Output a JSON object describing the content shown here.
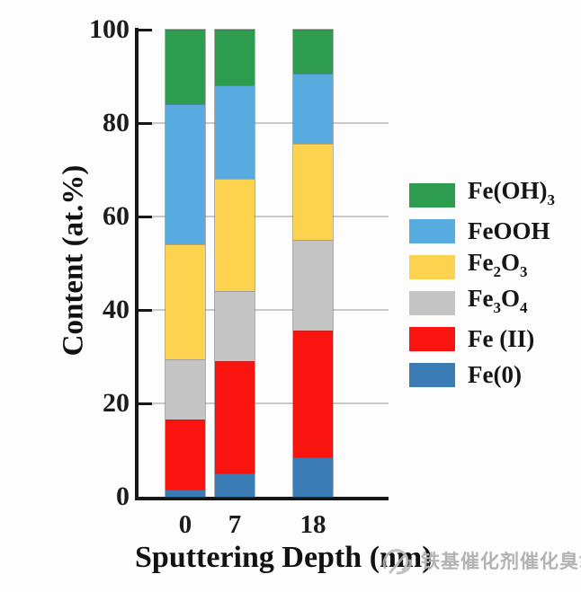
{
  "page": {
    "background": "#fdfdfd"
  },
  "chart_data": {
    "type": "bar",
    "stacked": true,
    "title": "",
    "xlabel": "Sputtering Depth (nm)",
    "ylabel": "Content (at.%)",
    "categories": [
      "0",
      "7",
      "18"
    ],
    "ylim": [
      0,
      100
    ],
    "yticks": [
      0,
      20,
      40,
      60,
      80,
      100
    ],
    "gridlines_at": [
      20,
      40,
      60,
      80
    ],
    "grid": "horizontal",
    "legend_position": "right",
    "series": [
      {
        "name": "Fe(0)",
        "color": "#3b7cb4",
        "values": [
          1.5,
          5,
          8.5
        ]
      },
      {
        "name": "Fe (II)",
        "color": "#f9140f",
        "values": [
          15,
          24,
          27
        ]
      },
      {
        "name": "Fe3O4",
        "color": "#c4c4c4",
        "values": [
          13,
          15,
          19.5
        ]
      },
      {
        "name": "Fe2O3",
        "color": "#fcd24f",
        "values": [
          24.5,
          24,
          20.5
        ]
      },
      {
        "name": "FeOOH",
        "color": "#57abdf",
        "values": [
          30,
          20,
          15
        ]
      },
      {
        "name": "Fe(OH)3",
        "color": "#2d9c4e",
        "values": [
          16,
          12,
          9.5
        ]
      }
    ]
  },
  "legend": {
    "items": [
      {
        "name": "Fe(OH)3",
        "color": "#2d9c4e",
        "parts": [
          [
            "t",
            "Fe(OH)"
          ],
          [
            "s",
            "3"
          ]
        ]
      },
      {
        "name": "FeOOH",
        "color": "#57abdf",
        "parts": [
          [
            "t",
            "FeOOH"
          ]
        ]
      },
      {
        "name": "Fe2O3",
        "color": "#fcd24f",
        "parts": [
          [
            "t",
            "Fe"
          ],
          [
            "s",
            "2"
          ],
          [
            "t",
            "O"
          ],
          [
            "s",
            "3"
          ]
        ]
      },
      {
        "name": "Fe3O4",
        "color": "#c4c4c4",
        "parts": [
          [
            "t",
            "Fe"
          ],
          [
            "s",
            "3"
          ],
          [
            "t",
            "O"
          ],
          [
            "s",
            "4"
          ]
        ]
      },
      {
        "name": "Fe (II)",
        "color": "#f9140f",
        "parts": [
          [
            "t",
            "Fe (II)"
          ]
        ]
      },
      {
        "name": "Fe(0)",
        "color": "#3b7cb4",
        "parts": [
          [
            "t",
            "Fe(0)"
          ]
        ]
      }
    ]
  },
  "watermark": {
    "text": "铁基催化剂催化臭氧"
  }
}
